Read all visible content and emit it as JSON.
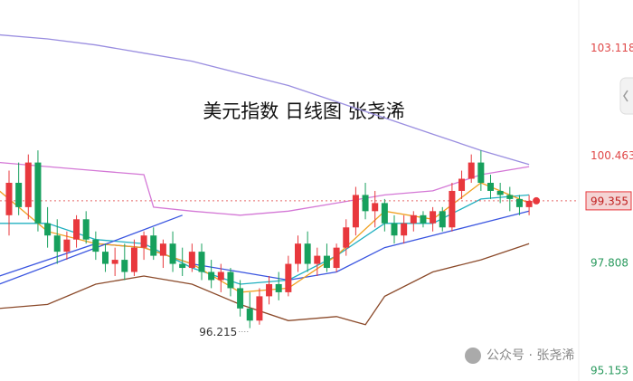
{
  "chart_data": {
    "type": "candlestick",
    "title": "美元指数 日线图 张尧浠",
    "watermark": "公众号 · 张尧浠",
    "ylim": [
      94.91,
      104.31
    ],
    "yticks": [
      95.153,
      97.808,
      100.463,
      103.118
    ],
    "current_price": 99.355,
    "low_annotation": 96.215,
    "up_color": "#e8383d",
    "down_color": "#17a05d",
    "candles": {
      "open": [
        99.0,
        99.8,
        99.2,
        100.3,
        98.8,
        98.5,
        98.1,
        98.4,
        98.9,
        98.4,
        98.1,
        97.8,
        97.9,
        97.6,
        98.2,
        98.5,
        98.0,
        98.3,
        97.8,
        97.7,
        98.1,
        97.6,
        97.4,
        97.6,
        97.2,
        96.7,
        96.4,
        97.0,
        97.3,
        97.1,
        97.8,
        98.3,
        97.8,
        98.0,
        97.7,
        98.2,
        98.7,
        99.5,
        99.1,
        99.3,
        98.8,
        98.5,
        98.8,
        99.0,
        98.8,
        99.1,
        98.7,
        99.6,
        99.9,
        100.3,
        99.8,
        99.6,
        99.5,
        99.4,
        99.2
      ],
      "high": [
        100.1,
        100.3,
        100.5,
        100.6,
        99.2,
        98.9,
        98.6,
        99.0,
        99.1,
        98.6,
        98.3,
        98.2,
        98.3,
        98.4,
        98.6,
        98.7,
        98.4,
        98.6,
        98.2,
        98.3,
        98.3,
        97.9,
        97.8,
        97.7,
        97.4,
        97.1,
        97.2,
        97.5,
        97.6,
        98.0,
        98.5,
        98.6,
        98.2,
        98.3,
        98.3,
        98.9,
        99.7,
        99.8,
        99.6,
        99.4,
        99.0,
        99.0,
        99.1,
        99.1,
        99.2,
        99.2,
        99.8,
        100.1,
        100.5,
        100.6,
        100.0,
        99.8,
        99.7,
        99.5,
        99.5
      ],
      "low": [
        98.5,
        99.0,
        98.9,
        98.6,
        98.2,
        97.8,
        97.9,
        98.2,
        98.3,
        97.9,
        97.6,
        97.5,
        97.4,
        97.5,
        97.9,
        97.9,
        97.7,
        97.6,
        97.5,
        97.6,
        97.4,
        97.2,
        97.1,
        97.0,
        96.5,
        96.215,
        96.3,
        96.8,
        96.9,
        97.0,
        97.6,
        97.6,
        97.5,
        97.6,
        97.6,
        98.0,
        98.5,
        98.9,
        98.7,
        98.6,
        98.3,
        98.3,
        98.6,
        98.7,
        98.6,
        98.6,
        98.6,
        99.4,
        99.8,
        99.6,
        99.4,
        99.3,
        99.1,
        99.0,
        99.0
      ],
      "close": [
        99.8,
        99.2,
        100.3,
        98.8,
        98.5,
        98.1,
        98.4,
        98.9,
        98.4,
        98.1,
        97.8,
        97.9,
        97.6,
        98.2,
        98.5,
        98.0,
        98.3,
        97.8,
        97.7,
        98.1,
        97.6,
        97.4,
        97.6,
        97.2,
        96.7,
        96.4,
        97.0,
        97.3,
        97.1,
        97.8,
        98.3,
        97.8,
        98.0,
        97.7,
        98.2,
        98.7,
        99.5,
        99.1,
        99.3,
        98.8,
        98.5,
        98.8,
        99.0,
        98.8,
        99.1,
        98.7,
        99.6,
        99.9,
        100.3,
        99.8,
        99.6,
        99.5,
        99.4,
        99.2,
        99.355
      ]
    },
    "lines": [
      {
        "color": "#9a8ee0",
        "x": [
          -1,
          4,
          9,
          14,
          19,
          24,
          29,
          34,
          39,
          44,
          49,
          54
        ],
        "values": [
          103.45,
          103.35,
          103.2,
          103.0,
          102.8,
          102.5,
          102.2,
          101.8,
          101.4,
          101.0,
          100.6,
          100.25
        ]
      },
      {
        "color": "#d478d6",
        "x": [
          -1,
          4,
          9,
          14,
          15,
          19,
          24,
          29,
          34,
          39,
          44,
          49,
          54
        ],
        "values": [
          100.3,
          100.2,
          100.1,
          100.0,
          99.2,
          99.1,
          99.0,
          99.1,
          99.3,
          99.5,
          99.6,
          100.0,
          100.2
        ]
      },
      {
        "color": "#8b4a2a",
        "x": [
          -1,
          4,
          9,
          14,
          19,
          24,
          29,
          34,
          37,
          39,
          44,
          49,
          54
        ],
        "values": [
          96.7,
          96.8,
          97.3,
          97.5,
          97.3,
          96.8,
          96.4,
          96.5,
          96.3,
          97.0,
          97.6,
          97.9,
          98.3
        ]
      },
      {
        "color": "#3a55e0",
        "x": [
          -1,
          4,
          9,
          14,
          19,
          24,
          29,
          34,
          39,
          44,
          49,
          54
        ],
        "values": [
          97.5,
          97.9,
          98.3,
          98.2,
          97.8,
          97.6,
          97.4,
          97.6,
          98.2,
          98.5,
          98.8,
          99.1
        ]
      },
      {
        "color": "#20b0c0",
        "x": [
          -1,
          4,
          9,
          14,
          19,
          24,
          29,
          34,
          39,
          44,
          49,
          54
        ],
        "values": [
          98.8,
          98.8,
          98.4,
          98.3,
          97.7,
          97.3,
          97.4,
          98.0,
          98.8,
          98.8,
          99.4,
          99.5
        ]
      },
      {
        "color": "#f0a020",
        "x": [
          -1,
          4,
          9,
          14,
          19,
          24,
          29,
          34,
          39,
          44,
          49,
          54
        ],
        "values": [
          99.6,
          98.6,
          98.3,
          98.2,
          97.8,
          97.1,
          97.2,
          98.0,
          99.1,
          98.9,
          99.8,
          99.3
        ]
      },
      {
        "color": "#3a55e0",
        "x": [
          -1,
          18
        ],
        "values": [
          97.3,
          99.0
        ]
      }
    ]
  }
}
